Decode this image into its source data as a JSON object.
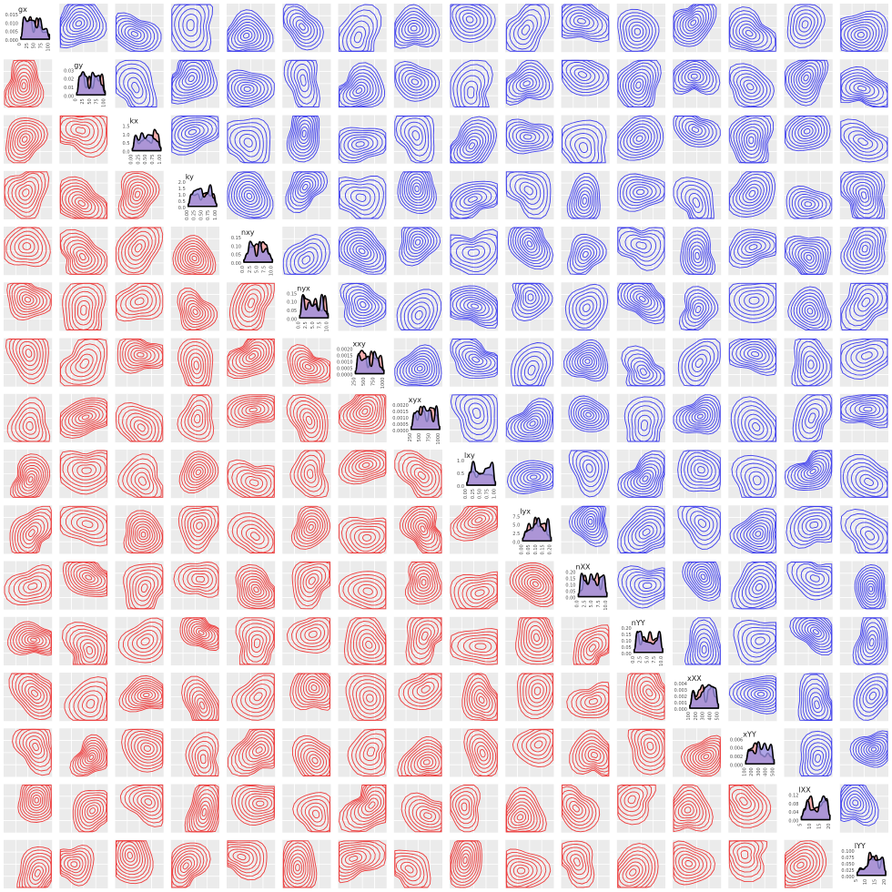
{
  "chart_data": {
    "type": "pairs-matrix",
    "variables": [
      "gx",
      "gy",
      "kx",
      "ky",
      "nxy",
      "nyx",
      "xxy",
      "xyx",
      "lxy",
      "lyx",
      "nXX",
      "nYY",
      "xXX",
      "xYY",
      "lXX",
      "lYY"
    ],
    "lower_panels": "2d density contours",
    "upper_panels": "2d density contours",
    "diagonal_panels": "1d density, two overlapping groups",
    "colors": {
      "lower": "#ee3b3b",
      "upper": "#3f3fee",
      "density_a": "#f4a6a6",
      "density_b": "#9a8fe0",
      "panel_bg": "#ebebeb"
    },
    "diagonal": [
      {
        "label": "gx",
        "yticks": [
          "0.015",
          "0.010",
          "0.005",
          "0.000"
        ],
        "xticks": [
          "0",
          "25",
          "50",
          "75",
          "100"
        ]
      },
      {
        "label": "gy",
        "yticks": [
          "0.03",
          "0.02",
          "0.01",
          "0.00"
        ],
        "xticks": [
          "0",
          "25",
          "50",
          "75",
          "100"
        ]
      },
      {
        "label": "kx",
        "yticks": [
          "1.5",
          "1.0",
          "0.5",
          "0.0"
        ],
        "xticks": [
          "0.00",
          "0.25",
          "0.50",
          "0.75",
          "1.00"
        ]
      },
      {
        "label": "ky",
        "yticks": [
          "2.0",
          "1.5",
          "1.0",
          "0.5",
          "0.0"
        ],
        "xticks": [
          "0.00",
          "0.25",
          "0.50",
          "0.75",
          "1.00"
        ]
      },
      {
        "label": "nxy",
        "yticks": [
          "0.15",
          "0.10",
          "0.05",
          "0.00"
        ],
        "xticks": [
          "0.0",
          "2.5",
          "5.0",
          "7.5",
          "10.0"
        ]
      },
      {
        "label": "nyx",
        "yticks": [
          "0.15",
          "0.10",
          "0.05",
          "0.00"
        ],
        "xticks": [
          "0.0",
          "2.5",
          "5.0",
          "7.5",
          "10.0"
        ]
      },
      {
        "label": "xxy",
        "yticks": [
          "0.0020",
          "0.0015",
          "0.0010",
          "0.0005",
          "0.0000"
        ],
        "xticks": [
          "250",
          "500",
          "750",
          "1000"
        ]
      },
      {
        "label": "xyx",
        "yticks": [
          "0.0020",
          "0.0015",
          "0.0010",
          "0.0005",
          "0.0000"
        ],
        "xticks": [
          "250",
          "500",
          "750",
          "1000"
        ]
      },
      {
        "label": "lxy",
        "yticks": [
          "1.0",
          "0.5",
          "0.0"
        ],
        "xticks": [
          "0.00",
          "0.25",
          "0.50",
          "0.75",
          "1.00"
        ]
      },
      {
        "label": "lyx",
        "yticks": [
          "7.5",
          "5.0",
          "2.5",
          "0.0"
        ],
        "xticks": [
          "0.00",
          "0.05",
          "0.10",
          "0.15",
          "0.20"
        ]
      },
      {
        "label": "nXX",
        "yticks": [
          "0.20",
          "0.15",
          "0.10",
          "0.05",
          "0.00"
        ],
        "xticks": [
          "0.0",
          "2.5",
          "5.0",
          "7.5",
          "10.0"
        ]
      },
      {
        "label": "nYY",
        "yticks": [
          "0.20",
          "0.15",
          "0.10",
          "0.05",
          "0.00"
        ],
        "xticks": [
          "0.0",
          "2.5",
          "5.0",
          "7.5",
          "10.0"
        ]
      },
      {
        "label": "xXX",
        "yticks": [
          "0.004",
          "0.003",
          "0.002",
          "0.001",
          "0.000"
        ],
        "xticks": [
          "100",
          "200",
          "300",
          "400",
          "500"
        ]
      },
      {
        "label": "xYY",
        "yticks": [
          "0.006",
          "0.004",
          "0.002",
          "0.000"
        ],
        "xticks": [
          "100",
          "200",
          "300",
          "400",
          "500"
        ]
      },
      {
        "label": "lXX",
        "yticks": [
          "0.12",
          "0.08",
          "0.04",
          "0.00"
        ],
        "xticks": [
          "5",
          "10",
          "15",
          "20"
        ]
      },
      {
        "label": "lYY",
        "yticks": [
          "0.100",
          "0.075",
          "0.050",
          "0.025",
          "0.000"
        ],
        "xticks": [
          "5",
          "10",
          "15",
          "20"
        ]
      }
    ]
  }
}
